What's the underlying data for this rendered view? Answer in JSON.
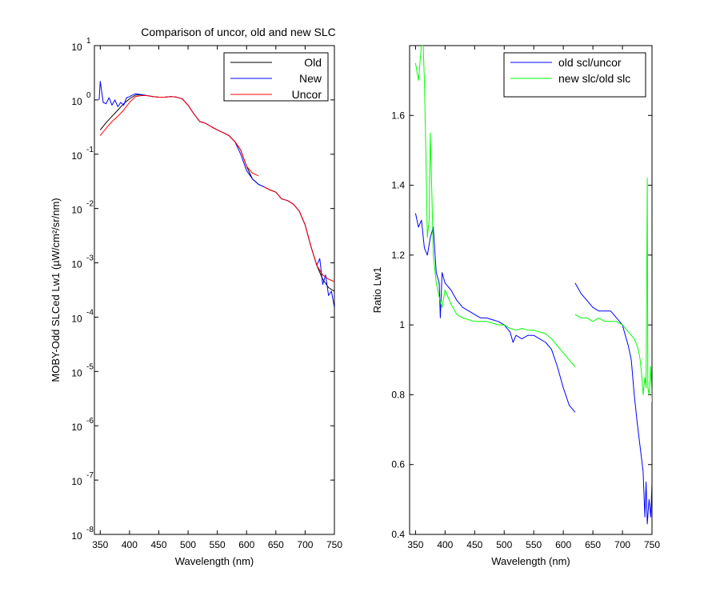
{
  "chart_data": [
    {
      "type": "line",
      "title": "Comparison of uncor, old and new SLC",
      "xlabel": "Wavelength (nm)",
      "ylabel": "MOBY-Odd SLCed Lw1 (µW/cm²/sr/nm)",
      "xlim": [
        340,
        750
      ],
      "ylim": [
        1e-08,
        10
      ],
      "yscale": "log",
      "grid": false,
      "legend_position": "top-right",
      "x_ticks": [
        350,
        400,
        450,
        500,
        550,
        600,
        650,
        700,
        750
      ],
      "y_ticks": [
        {
          "base": "10",
          "exp": "-8",
          "value": 1e-08
        },
        {
          "base": "10",
          "exp": "-7",
          "value": 1e-07
        },
        {
          "base": "10",
          "exp": "-6",
          "value": 1e-06
        },
        {
          "base": "10",
          "exp": "-5",
          "value": 1e-05
        },
        {
          "base": "10",
          "exp": "-4",
          "value": 0.0001
        },
        {
          "base": "10",
          "exp": "-3",
          "value": 0.001
        },
        {
          "base": "10",
          "exp": "-2",
          "value": 0.01
        },
        {
          "base": "10",
          "exp": "-1",
          "value": 0.1
        },
        {
          "base": "10",
          "exp": "0",
          "value": 1
        },
        {
          "base": "10",
          "exp": "1",
          "value": 10
        }
      ],
      "series": [
        {
          "name": "Old",
          "color": "#000000",
          "x": [
            350,
            360,
            370,
            380,
            390,
            400,
            410,
            420,
            430,
            440,
            450,
            460,
            470,
            480,
            490,
            500,
            510,
            520,
            530,
            540,
            550,
            560,
            570,
            580,
            590,
            600,
            610,
            620,
            630,
            640,
            650,
            660,
            670,
            680,
            690,
            700,
            710,
            720,
            730,
            740,
            750
          ],
          "y": [
            0.28,
            0.38,
            0.5,
            0.65,
            0.85,
            1.05,
            1.22,
            1.25,
            1.2,
            1.15,
            1.12,
            1.12,
            1.15,
            1.13,
            1.05,
            0.8,
            0.55,
            0.4,
            0.37,
            0.32,
            0.28,
            0.25,
            0.22,
            0.17,
            0.12,
            0.06,
            0.035,
            0.028,
            0.025,
            0.022,
            0.02,
            0.015,
            0.014,
            0.012,
            0.009,
            0.005,
            0.002,
            0.0009,
            0.0005,
            0.00035,
            0.0003
          ]
        },
        {
          "name": "New",
          "color": "#0000ff",
          "x": [
            348,
            350,
            355,
            360,
            365,
            370,
            375,
            380,
            385,
            390,
            395,
            400,
            410,
            420,
            430,
            440,
            450,
            460,
            470,
            480,
            490,
            500,
            510,
            520,
            530,
            540,
            550,
            560,
            570,
            580,
            590,
            600,
            610,
            620,
            630,
            640,
            650,
            660,
            670,
            680,
            690,
            700,
            710,
            720,
            725,
            730,
            735,
            740,
            745,
            750
          ],
          "y": [
            1.0,
            2.2,
            0.9,
            0.85,
            1.1,
            0.8,
            1.0,
            0.75,
            0.9,
            0.8,
            1.1,
            1.15,
            1.3,
            1.25,
            1.2,
            1.15,
            1.12,
            1.12,
            1.15,
            1.13,
            1.05,
            0.8,
            0.55,
            0.4,
            0.37,
            0.32,
            0.28,
            0.25,
            0.22,
            0.17,
            0.1,
            0.05,
            0.035,
            0.028,
            0.025,
            0.022,
            0.02,
            0.015,
            0.014,
            0.012,
            0.009,
            0.005,
            0.002,
            0.0009,
            0.0012,
            0.0004,
            0.0006,
            0.00025,
            0.0003,
            0.00015
          ]
        },
        {
          "name": "Uncor",
          "color": "#ff0000",
          "x": [
            350,
            360,
            370,
            380,
            390,
            400,
            410,
            420,
            430,
            440,
            450,
            460,
            470,
            480,
            490,
            500,
            510,
            520,
            530,
            540,
            550,
            560,
            570,
            580,
            590,
            600,
            610,
            620
          ],
          "y": [
            0.22,
            0.3,
            0.4,
            0.5,
            0.65,
            0.9,
            1.15,
            1.2,
            1.2,
            1.15,
            1.12,
            1.12,
            1.15,
            1.13,
            1.05,
            0.8,
            0.55,
            0.4,
            0.37,
            0.32,
            0.28,
            0.25,
            0.22,
            0.17,
            0.12,
            0.06,
            0.045,
            0.04
          ]
        },
        {
          "name": "",
          "color": "#ff0000",
          "x": [
            630,
            640,
            650,
            660,
            670,
            680,
            690,
            700,
            710,
            720,
            730,
            740,
            750
          ],
          "y": [
            0.025,
            0.022,
            0.02,
            0.015,
            0.014,
            0.012,
            0.009,
            0.005,
            0.002,
            0.0009,
            0.0006,
            0.0005,
            0.00045
          ]
        }
      ]
    },
    {
      "type": "line",
      "title": "",
      "xlabel": "Wavelength (nm)",
      "ylabel": "Ratio Lw1",
      "xlim": [
        340,
        750
      ],
      "ylim": [
        0.4,
        1.8
      ],
      "yscale": "linear",
      "grid": false,
      "legend_position": "top-right",
      "x_ticks": [
        350,
        400,
        450,
        500,
        550,
        600,
        650,
        700,
        750
      ],
      "y_ticks": [
        0.4,
        0.6,
        0.8,
        1,
        1.2,
        1.4,
        1.6
      ],
      "series": [
        {
          "name": "old scl/uncor",
          "color": "#0000ff",
          "x": [
            350,
            355,
            360,
            365,
            370,
            375,
            380,
            385,
            390,
            392,
            395,
            400,
            410,
            420,
            430,
            440,
            450,
            460,
            470,
            480,
            490,
            500,
            510,
            515,
            520,
            530,
            540,
            550,
            560,
            570,
            580,
            590,
            600,
            610,
            620
          ],
          "y": [
            1.32,
            1.28,
            1.3,
            1.22,
            1.2,
            1.25,
            1.28,
            1.15,
            1.12,
            1.02,
            1.15,
            1.12,
            1.1,
            1.07,
            1.05,
            1.04,
            1.03,
            1.02,
            1.02,
            1.015,
            1.01,
            1.0,
            0.98,
            0.95,
            0.97,
            0.96,
            0.97,
            0.97,
            0.96,
            0.95,
            0.93,
            0.88,
            0.82,
            0.77,
            0.75
          ]
        },
        {
          "name": "",
          "color": "#0000ff",
          "x": [
            620,
            630,
            640,
            650,
            660,
            670,
            680,
            690,
            700,
            705,
            710,
            715,
            720,
            725,
            730,
            735,
            738,
            740,
            742,
            745,
            748,
            750
          ],
          "y": [
            1.12,
            1.09,
            1.07,
            1.05,
            1.04,
            1.04,
            1.04,
            1.02,
            1.0,
            0.97,
            0.94,
            0.9,
            0.8,
            0.72,
            0.65,
            0.58,
            0.45,
            0.55,
            0.43,
            0.5,
            0.45,
            0.55
          ]
        },
        {
          "name": "new slc/old slc",
          "color": "#00ff00",
          "x": [
            350,
            355,
            360,
            363,
            365,
            368,
            370,
            373,
            375,
            378,
            380,
            385,
            390,
            395,
            400,
            410,
            420,
            430,
            440,
            450,
            460,
            470,
            480,
            490,
            500,
            510,
            520,
            530,
            540,
            550,
            560,
            570,
            580,
            590,
            600,
            610,
            620
          ],
          "y": [
            1.75,
            1.7,
            1.8,
            1.8,
            1.7,
            1.45,
            1.25,
            1.3,
            1.55,
            1.35,
            1.2,
            1.12,
            1.08,
            1.05,
            1.1,
            1.06,
            1.03,
            1.02,
            1.015,
            1.01,
            1.01,
            1.01,
            1.005,
            1.0,
            1.0,
            0.99,
            0.985,
            0.99,
            0.985,
            0.985,
            0.98,
            0.975,
            0.96,
            0.94,
            0.92,
            0.9,
            0.88
          ]
        },
        {
          "name": "",
          "color": "#00ff00",
          "x": [
            620,
            630,
            640,
            650,
            660,
            670,
            680,
            690,
            700,
            710,
            715,
            720,
            725,
            728,
            730,
            733,
            735,
            738,
            740,
            742,
            743,
            745,
            748,
            750
          ],
          "y": [
            1.03,
            1.02,
            1.02,
            1.01,
            1.02,
            1.01,
            1.01,
            1.01,
            1.0,
            0.98,
            0.97,
            0.96,
            0.94,
            0.92,
            0.9,
            0.85,
            0.8,
            0.85,
            0.82,
            1.42,
            0.82,
            0.8,
            0.88,
            0.78
          ]
        }
      ]
    }
  ]
}
